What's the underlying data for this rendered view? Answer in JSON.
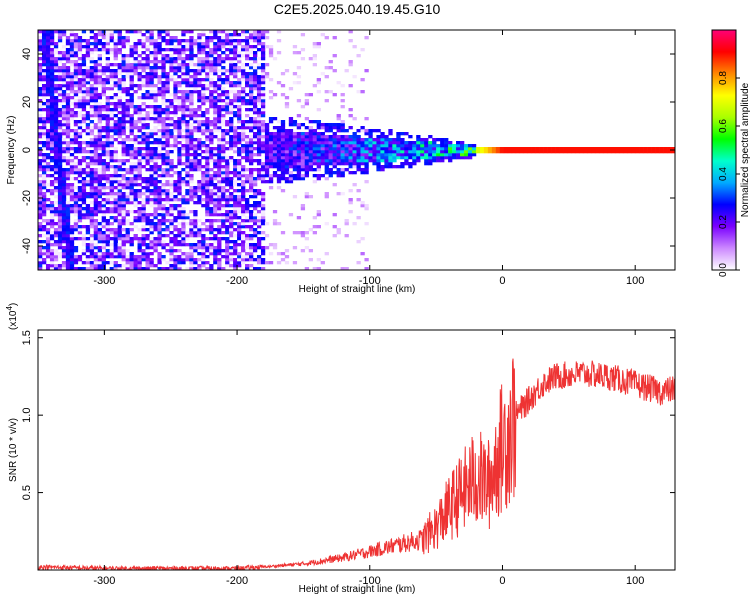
{
  "title": "C2E5.2025.040.19.45.G10",
  "chart_data": [
    {
      "type": "heatmap",
      "xlabel": "Height of straight line (km)",
      "ylabel": "Frequency (Hz)",
      "xlim": [
        -350,
        130
      ],
      "ylim": [
        -50,
        50
      ],
      "xticks": [
        -300,
        -200,
        -100,
        0,
        100
      ],
      "yticks": [
        -40,
        -20,
        0,
        20,
        40
      ],
      "colorbar": {
        "label": "Normalized spectral amplitude",
        "range": [
          0,
          1
        ],
        "ticks": [
          "0.0",
          "0.2",
          "0.4",
          "0.6",
          "0.8"
        ],
        "tick_values": [
          0,
          0.2,
          0.4,
          0.6,
          0.8
        ],
        "colors": [
          "#ffffff",
          "#cc88ff",
          "#7a00ff",
          "#0000ff",
          "#00aaff",
          "#00ffcc",
          "#00ff00",
          "#aaff00",
          "#ffff00",
          "#ff8800",
          "#ff0000",
          "#ff0077"
        ]
      },
      "features": {
        "noise_region": {
          "x": [
            -350,
            -180
          ],
          "y": [
            -50,
            50
          ],
          "amplitude": 0.25
        },
        "sparse_region": {
          "x": [
            -180,
            -100
          ],
          "y": [
            -50,
            50
          ],
          "amplitude": 0.08
        },
        "diagonal_streak": {
          "x": [
            -345,
            -325
          ],
          "y": [
            50,
            -50
          ],
          "amplitude": 0.2
        },
        "signal_band": [
          {
            "x": -180,
            "half_width_hz": 8,
            "amplitude": 0.25
          },
          {
            "x": -120,
            "half_width_hz": 6,
            "amplitude": 0.35
          },
          {
            "x": -70,
            "half_width_hz": 4,
            "amplitude": 0.45
          },
          {
            "x": -30,
            "half_width_hz": 2,
            "amplitude": 0.55
          },
          {
            "x": 0,
            "half_width_hz": 1,
            "amplitude": 0.9
          },
          {
            "x": 130,
            "half_width_hz": 1,
            "amplitude": 0.9
          }
        ]
      }
    },
    {
      "type": "line",
      "xlabel": "Height of straight line (km)",
      "ylabel": "SNR (10 * v/v)",
      "scale_label": "(x10",
      "scale_exponent": "4",
      "scale_close": ")",
      "xlim": [
        -350,
        130
      ],
      "ylim": [
        0,
        1.55
      ],
      "xticks": [
        -300,
        -200,
        -100,
        0,
        100
      ],
      "yticks": [
        0.5,
        1.0,
        1.5
      ],
      "ytick_labels": [
        "0.5",
        "1.0",
        "1.5"
      ],
      "color": "#ee3333",
      "series": [
        {
          "x": [
            -350,
            -300,
            -250,
            -200,
            -180,
            -150,
            -120,
            -100,
            -80,
            -60,
            -50,
            -40,
            -30,
            -20,
            -10,
            -5,
            0,
            10,
            20,
            30,
            40,
            60,
            80,
            100,
            120,
            130
          ],
          "values": [
            0.02,
            0.01,
            0.01,
            0.01,
            0.02,
            0.04,
            0.08,
            0.12,
            0.16,
            0.2,
            0.28,
            0.4,
            0.5,
            0.6,
            0.55,
            0.7,
            0.8,
            1.0,
            1.1,
            1.2,
            1.25,
            1.27,
            1.25,
            1.2,
            1.15,
            1.17
          ]
        }
      ]
    }
  ]
}
